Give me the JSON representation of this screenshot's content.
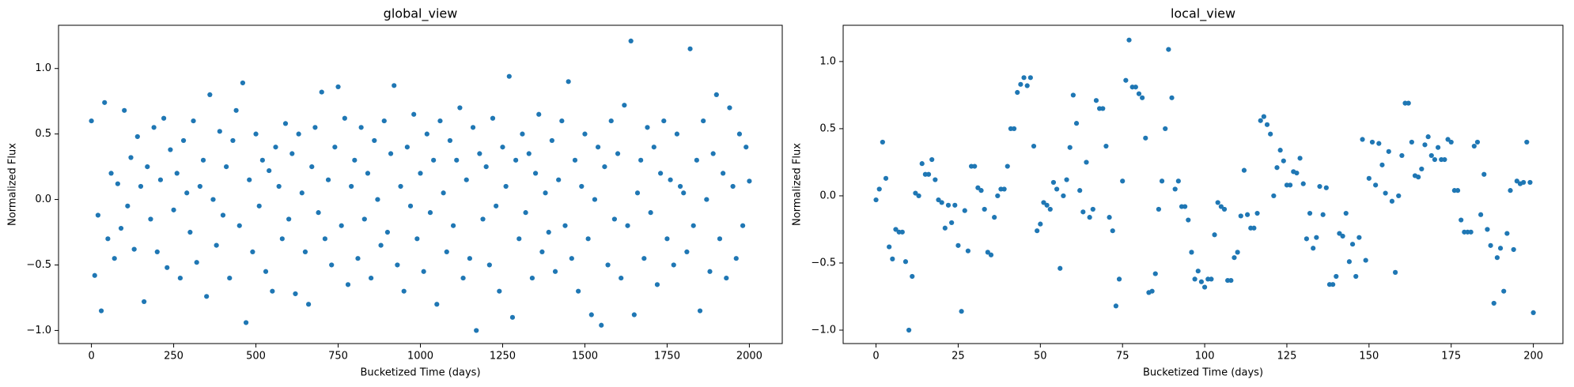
{
  "chart_data": [
    {
      "type": "scatter",
      "title": "global_view",
      "x_label": "Bucketized Time (days)",
      "y_label": "Normalized Flux",
      "color": "#1f77b4",
      "x": [
        0,
        10,
        20,
        30,
        40,
        50,
        60,
        70,
        80,
        90,
        100,
        110,
        120,
        130,
        140,
        150,
        160,
        170,
        180,
        190,
        200,
        210,
        220,
        230,
        240,
        250,
        260,
        270,
        280,
        290,
        300,
        310,
        320,
        330,
        340,
        350,
        360,
        370,
        380,
        390,
        400,
        410,
        420,
        430,
        440,
        450,
        460,
        470,
        480,
        490,
        500,
        510,
        520,
        530,
        540,
        550,
        560,
        570,
        580,
        590,
        600,
        610,
        620,
        630,
        640,
        650,
        660,
        670,
        680,
        690,
        700,
        710,
        720,
        730,
        740,
        750,
        760,
        770,
        780,
        790,
        800,
        810,
        820,
        830,
        840,
        850,
        860,
        870,
        880,
        890,
        900,
        910,
        920,
        930,
        940,
        950,
        960,
        970,
        980,
        990,
        1000,
        1010,
        1020,
        1030,
        1040,
        1050,
        1060,
        1070,
        1080,
        1090,
        1100,
        1110,
        1120,
        1130,
        1140,
        1150,
        1160,
        1170,
        1180,
        1190,
        1200,
        1210,
        1220,
        1230,
        1240,
        1250,
        1260,
        1270,
        1280,
        1290,
        1300,
        1310,
        1320,
        1330,
        1340,
        1350,
        1360,
        1370,
        1380,
        1390,
        1400,
        1410,
        1420,
        1430,
        1440,
        1450,
        1460,
        1470,
        1480,
        1490,
        1500,
        1510,
        1520,
        1530,
        1540,
        1550,
        1560,
        1570,
        1580,
        1590,
        1600,
        1610,
        1620,
        1630,
        1640,
        1650,
        1660,
        1670,
        1680,
        1690,
        1700,
        1710,
        1720,
        1730,
        1740,
        1750,
        1760,
        1770,
        1780,
        1790,
        1800,
        1810,
        1820,
        1830,
        1840,
        1850,
        1860,
        1870,
        1880,
        1890,
        1900,
        1910,
        1920,
        1930,
        1940,
        1950,
        1960,
        1970,
        1980,
        1990,
        2000
      ],
      "values": [
        0.6,
        -0.58,
        -0.12,
        -0.85,
        0.74,
        -0.3,
        0.2,
        -0.45,
        0.12,
        -0.22,
        0.68,
        -0.05,
        0.32,
        -0.38,
        0.48,
        0.1,
        -0.78,
        0.25,
        -0.15,
        0.55,
        -0.4,
        0.15,
        0.62,
        -0.52,
        0.38,
        -0.08,
        0.2,
        -0.6,
        0.45,
        0.05,
        -0.25,
        0.6,
        -0.48,
        0.1,
        0.3,
        -0.74,
        0.8,
        0.0,
        -0.35,
        0.52,
        -0.12,
        0.25,
        -0.6,
        0.45,
        0.68,
        -0.2,
        0.89,
        -0.94,
        0.15,
        -0.4,
        0.5,
        -0.05,
        0.3,
        -0.55,
        0.22,
        -0.7,
        0.4,
        0.1,
        -0.3,
        0.58,
        -0.15,
        0.35,
        -0.72,
        0.5,
        0.05,
        -0.4,
        -0.8,
        0.25,
        0.55,
        -0.1,
        0.82,
        -0.3,
        0.15,
        -0.5,
        0.4,
        0.86,
        -0.2,
        0.62,
        -0.65,
        0.1,
        0.3,
        -0.45,
        0.55,
        -0.15,
        0.2,
        -0.6,
        0.45,
        0.0,
        -0.35,
        0.6,
        -0.25,
        0.35,
        0.87,
        -0.5,
        0.1,
        -0.7,
        0.4,
        -0.05,
        0.65,
        -0.3,
        0.2,
        -0.55,
        0.5,
        -0.1,
        0.3,
        -0.8,
        0.6,
        0.05,
        -0.4,
        0.45,
        -0.2,
        0.3,
        0.7,
        -0.6,
        0.15,
        -0.45,
        0.55,
        -1.0,
        0.35,
        -0.15,
        0.25,
        -0.5,
        0.62,
        -0.05,
        -0.7,
        0.4,
        0.1,
        0.94,
        -0.9,
        0.3,
        -0.3,
        0.5,
        -0.1,
        0.35,
        -0.6,
        0.2,
        0.65,
        -0.4,
        0.05,
        -0.25,
        0.45,
        -0.55,
        0.15,
        0.6,
        -0.2,
        0.9,
        -0.45,
        0.3,
        -0.7,
        0.1,
        0.5,
        -0.3,
        -0.88,
        0.0,
        0.4,
        -0.96,
        0.25,
        -0.5,
        0.6,
        -0.15,
        0.35,
        -0.6,
        0.72,
        -0.2,
        1.21,
        -0.88,
        0.05,
        0.3,
        -0.45,
        0.55,
        -0.1,
        0.4,
        -0.65,
        0.2,
        0.6,
        -0.3,
        0.15,
        -0.5,
        0.5,
        0.1,
        0.05,
        -0.4,
        1.15,
        -0.2,
        0.3,
        -0.85,
        0.6,
        0.0,
        -0.55,
        0.35,
        0.8,
        -0.3,
        0.2,
        -0.6,
        0.7,
        0.1,
        -0.45,
        0.5,
        -0.2,
        0.4,
        0.14
      ],
      "xlim": [
        -100,
        2100
      ],
      "ylim": [
        -1.1,
        1.33
      ],
      "xticks": [
        0,
        250,
        500,
        750,
        1000,
        1250,
        1500,
        1750,
        2000
      ],
      "yticks": [
        {
          "value": -1.0,
          "label": "−1.0"
        },
        {
          "value": -0.5,
          "label": "−0.5"
        },
        {
          "value": 0.0,
          "label": "0.0"
        },
        {
          "value": 0.5,
          "label": "0.5"
        },
        {
          "value": 1.0,
          "label": "1.0"
        }
      ],
      "grid": false
    },
    {
      "type": "scatter",
      "title": "local_view",
      "x_label": "Bucketized Time (days)",
      "y_label": "Normalized Flux",
      "color": "#1f77b4",
      "x": [
        0,
        1,
        2,
        3,
        4,
        5,
        6,
        7,
        8,
        9,
        10,
        11,
        12,
        13,
        14,
        15,
        16,
        17,
        18,
        19,
        20,
        21,
        22,
        23,
        24,
        25,
        26,
        27,
        28,
        29,
        30,
        31,
        32,
        33,
        34,
        35,
        36,
        37,
        38,
        39,
        40,
        41,
        42,
        43,
        44,
        45,
        46,
        47,
        48,
        49,
        50,
        51,
        52,
        53,
        54,
        55,
        56,
        57,
        58,
        59,
        60,
        61,
        62,
        63,
        64,
        65,
        66,
        67,
        68,
        69,
        70,
        71,
        72,
        73,
        74,
        75,
        76,
        77,
        78,
        79,
        80,
        81,
        82,
        83,
        84,
        85,
        86,
        87,
        88,
        89,
        90,
        91,
        92,
        93,
        94,
        95,
        96,
        97,
        98,
        99,
        100,
        101,
        102,
        103,
        104,
        105,
        106,
        107,
        108,
        109,
        110,
        111,
        112,
        113,
        114,
        115,
        116,
        117,
        118,
        119,
        120,
        121,
        122,
        123,
        124,
        125,
        126,
        127,
        128,
        129,
        130,
        131,
        132,
        133,
        134,
        135,
        136,
        137,
        138,
        139,
        140,
        141,
        142,
        143,
        144,
        145,
        146,
        147,
        148,
        149,
        150,
        151,
        152,
        153,
        154,
        155,
        156,
        157,
        158,
        159,
        160,
        161,
        162,
        163,
        164,
        165,
        166,
        167,
        168,
        169,
        170,
        171,
        172,
        173,
        174,
        175,
        176,
        177,
        178,
        179,
        180,
        181,
        182,
        183,
        184,
        185,
        186,
        187,
        188,
        189,
        190,
        191,
        192,
        193,
        194,
        195,
        196,
        197,
        198,
        199,
        200
      ],
      "values": [
        -0.03,
        0.05,
        0.4,
        0.13,
        -0.38,
        -0.47,
        -0.25,
        -0.27,
        -0.27,
        -0.49,
        -1.0,
        -0.6,
        0.02,
        0.0,
        0.24,
        0.16,
        0.16,
        0.27,
        0.12,
        -0.03,
        -0.05,
        -0.24,
        -0.07,
        -0.2,
        -0.07,
        -0.37,
        -0.86,
        -0.11,
        -0.41,
        0.22,
        0.22,
        0.06,
        0.04,
        -0.1,
        -0.42,
        -0.44,
        -0.16,
        0.0,
        0.05,
        0.05,
        0.22,
        0.5,
        0.5,
        0.77,
        0.83,
        0.88,
        0.82,
        0.88,
        0.37,
        -0.26,
        -0.21,
        -0.05,
        -0.07,
        -0.1,
        0.1,
        0.05,
        -0.54,
        0.0,
        0.12,
        0.36,
        0.75,
        0.54,
        0.04,
        -0.12,
        0.25,
        -0.16,
        -0.1,
        0.71,
        0.65,
        0.65,
        0.37,
        -0.16,
        -0.26,
        -0.82,
        -0.62,
        0.11,
        0.86,
        1.16,
        0.81,
        0.81,
        0.76,
        0.73,
        0.43,
        -0.72,
        -0.71,
        -0.58,
        -0.1,
        0.11,
        0.5,
        1.09,
        0.73,
        0.05,
        0.11,
        -0.08,
        -0.08,
        -0.18,
        -0.42,
        -0.62,
        -0.56,
        -0.64,
        -0.68,
        -0.62,
        -0.62,
        -0.29,
        -0.05,
        -0.08,
        -0.1,
        -0.63,
        -0.63,
        -0.46,
        -0.42,
        -0.15,
        0.19,
        -0.14,
        -0.24,
        -0.24,
        -0.13,
        0.56,
        0.59,
        0.53,
        0.46,
        0.0,
        0.21,
        0.34,
        0.26,
        0.08,
        0.08,
        0.18,
        0.17,
        0.28,
        0.09,
        -0.32,
        -0.13,
        -0.39,
        -0.31,
        0.07,
        -0.14,
        0.06,
        -0.66,
        -0.66,
        -0.6,
        -0.28,
        -0.3,
        -0.13,
        -0.49,
        -0.36,
        -0.6,
        -0.31,
        0.42,
        -0.48,
        0.13,
        0.4,
        0.08,
        0.39,
        0.23,
        0.02,
        0.33,
        -0.04,
        -0.57,
        0.0,
        0.3,
        0.69,
        0.69,
        0.4,
        0.15,
        0.14,
        0.2,
        0.38,
        0.44,
        0.3,
        0.27,
        0.36,
        0.27,
        0.27,
        0.42,
        0.4,
        0.04,
        0.04,
        -0.18,
        -0.27,
        -0.27,
        -0.27,
        0.37,
        0.4,
        -0.14,
        0.16,
        -0.25,
        -0.37,
        -0.8,
        -0.46,
        -0.39,
        -0.71,
        -0.28,
        0.04,
        -0.4,
        0.11,
        0.09,
        0.1,
        0.4,
        0.1,
        -0.87
      ],
      "xlim": [
        -10,
        209
      ],
      "ylim": [
        -1.1,
        1.27
      ],
      "xticks": [
        0,
        25,
        50,
        75,
        100,
        125,
        150,
        175,
        200
      ],
      "yticks": [
        {
          "value": -1.0,
          "label": "−1.0"
        },
        {
          "value": -0.5,
          "label": "−0.5"
        },
        {
          "value": 0.0,
          "label": "0.0"
        },
        {
          "value": 0.5,
          "label": "0.5"
        },
        {
          "value": 1.0,
          "label": "1.0"
        }
      ],
      "grid": false
    }
  ]
}
